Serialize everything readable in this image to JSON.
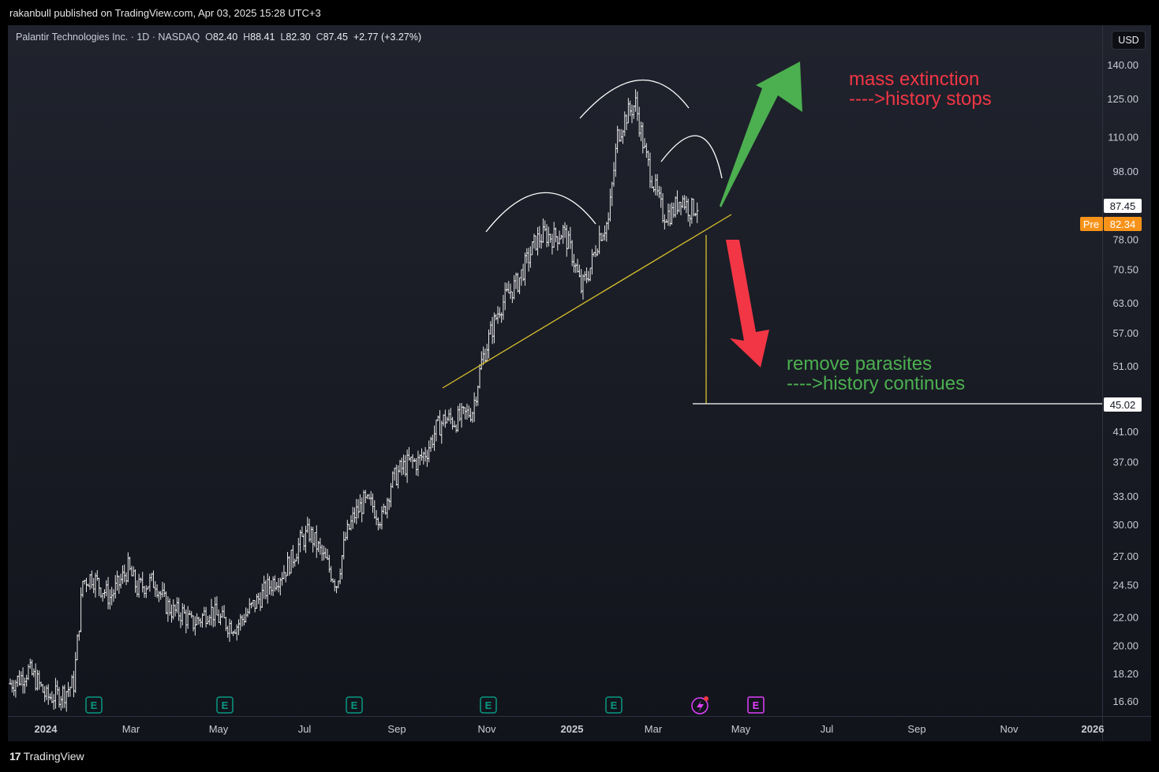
{
  "header": {
    "published": "rakanbull published on TradingView.com, Apr 03, 2025 15:28 UTC+3"
  },
  "legend": {
    "symbol": "Palantir Technologies Inc. · 1D · NASDAQ",
    "o_label": "O",
    "o": "82.40",
    "h_label": "H",
    "h": "88.41",
    "l_label": "L",
    "l": "82.30",
    "c_label": "C",
    "c": "87.45",
    "change": "+2.77 (+3.27%)"
  },
  "currency": "USD",
  "footer": {
    "brand": "TradingView",
    "logo": "17"
  },
  "colors": {
    "bull_text": "#f23645",
    "bear_text": "#4caf50",
    "green_arrow": "#4caf50",
    "red_arrow": "#f23645",
    "trendline": "#d9c12c",
    "pre_badge": "#f7931a"
  },
  "annotations": {
    "up_line1": "mass extinction",
    "up_line2": "---->history stops",
    "down_line1": "remove parasites",
    "down_line2": "---->history continues"
  },
  "price_labels": {
    "last": "87.45",
    "pre_tag": "Pre",
    "pre": "82.34",
    "target": "45.02"
  },
  "chart_data": {
    "type": "bar",
    "scale": "log",
    "ylim": [
      15.6,
      150
    ],
    "y_ticks": [
      {
        "v": 140,
        "label": "140.00"
      },
      {
        "v": 125,
        "label": "125.00"
      },
      {
        "v": 110,
        "label": "110.00"
      },
      {
        "v": 98,
        "label": "98.00"
      },
      {
        "v": 78,
        "label": "78.00"
      },
      {
        "v": 70.5,
        "label": "70.50"
      },
      {
        "v": 63,
        "label": "63.00"
      },
      {
        "v": 57,
        "label": "57.00"
      },
      {
        "v": 51,
        "label": "51.00"
      },
      {
        "v": 41,
        "label": "41.00"
      },
      {
        "v": 37,
        "label": "37.00"
      },
      {
        "v": 33,
        "label": "33.00"
      },
      {
        "v": 30,
        "label": "30.00"
      },
      {
        "v": 27,
        "label": "27.00"
      },
      {
        "v": 24.5,
        "label": "24.50"
      },
      {
        "v": 22,
        "label": "22.00"
      },
      {
        "v": 20,
        "label": "20.00"
      },
      {
        "v": 18.2,
        "label": "18.20"
      },
      {
        "v": 16.6,
        "label": "16.60"
      }
    ],
    "x_ticks": [
      {
        "label": "2024",
        "bold": true
      },
      {
        "label": "Mar"
      },
      {
        "label": "May"
      },
      {
        "label": "Jul"
      },
      {
        "label": "Sep"
      },
      {
        "label": "Nov"
      },
      {
        "label": "2025",
        "bold": true
      },
      {
        "label": "Mar"
      },
      {
        "label": "May"
      },
      {
        "label": "Jul"
      },
      {
        "label": "Sep"
      },
      {
        "label": "Nov"
      },
      {
        "label": "2026",
        "bold": true
      }
    ],
    "earnings_markers": [
      "E",
      "E",
      "E",
      "E",
      "E",
      "E"
    ],
    "weekly_closes": [
      17.6,
      17.9,
      18.4,
      17.7,
      16.8,
      16.9,
      17.1,
      17.6,
      24.8,
      25.2,
      24.3,
      23.5,
      24.6,
      25.9,
      24.2,
      24.6,
      24.8,
      23.1,
      22.4,
      22.3,
      21.5,
      21.9,
      22.6,
      21.9,
      21.5,
      21.4,
      22.2,
      23.0,
      23.9,
      24.8,
      25.5,
      26.6,
      28.3,
      29.2,
      27.7,
      26.2,
      24.6,
      28.7,
      31.0,
      32.3,
      31.9,
      30.5,
      34.4,
      36.0,
      36.9,
      37.0,
      38.5,
      41.3,
      42.8,
      42.4,
      43.1,
      44.0,
      51.6,
      57.0,
      62.1,
      65.1,
      67.6,
      72.4,
      77.6,
      79.3,
      78.5,
      80.2,
      74.2,
      66.1,
      70.9,
      79.2,
      82.9,
      110.4,
      118.2,
      122.9,
      104.5,
      93.9,
      84.9,
      85.1,
      90.0,
      86.1,
      87.45
    ]
  }
}
